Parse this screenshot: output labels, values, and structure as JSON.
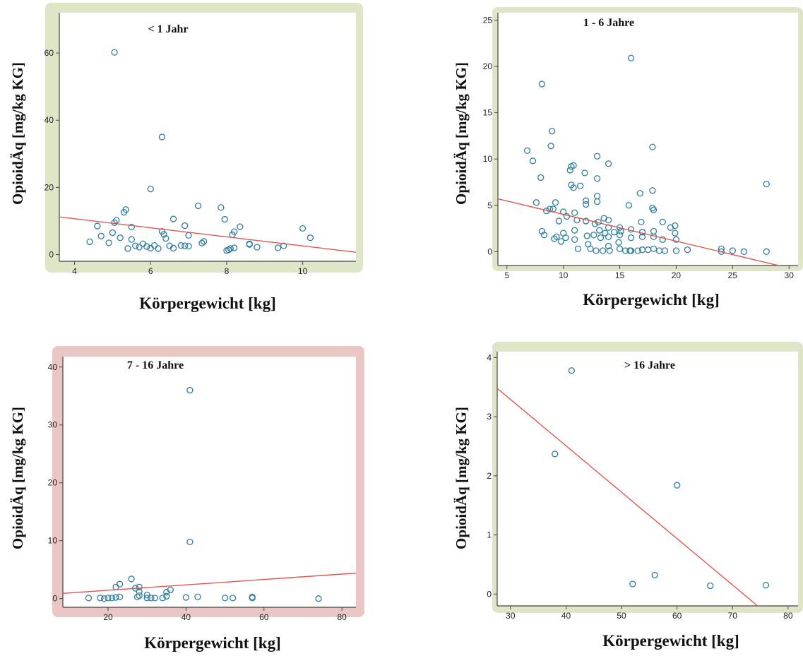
{
  "colors": {
    "point": "#2e7e9e",
    "fit_line": "#e0574f",
    "frame_ok": "#dfe6c8",
    "frame_alert": "#eac6c5",
    "axis": "#444444"
  },
  "chart_data": [
    {
      "type": "scatter",
      "title": "< 1 Jahr",
      "xlabel": "Körpergewicht [kg]",
      "ylabel": "OpioidÄq [mg/kg KG]",
      "frame": "frame_ok",
      "xlim": [
        3.6,
        11.4
      ],
      "ylim": [
        -2,
        72
      ],
      "xticks": [
        4,
        6,
        8,
        10
      ],
      "yticks": [
        0,
        20,
        40,
        60
      ],
      "fit": [
        [
          3.6,
          11.2
        ],
        [
          11.4,
          0.7
        ]
      ],
      "points": [
        [
          4.4,
          3.8
        ],
        [
          4.6,
          8.5
        ],
        [
          4.7,
          5.5
        ],
        [
          4.9,
          3.5
        ],
        [
          5.0,
          6.5
        ],
        [
          5.05,
          9.5
        ],
        [
          5.1,
          10.2
        ],
        [
          5.05,
          60.2
        ],
        [
          5.3,
          12.6
        ],
        [
          5.35,
          13.4
        ],
        [
          5.2,
          5.0
        ],
        [
          5.4,
          1.8
        ],
        [
          5.5,
          8.2
        ],
        [
          5.5,
          4.5
        ],
        [
          5.6,
          2.6
        ],
        [
          5.7,
          2.2
        ],
        [
          5.8,
          3.2
        ],
        [
          5.9,
          2.4
        ],
        [
          6.0,
          1.9
        ],
        [
          6.1,
          2.7
        ],
        [
          6.0,
          19.5
        ],
        [
          6.2,
          1.8
        ],
        [
          6.3,
          35.0
        ],
        [
          6.3,
          6.9
        ],
        [
          6.35,
          6.0
        ],
        [
          6.4,
          4.8
        ],
        [
          6.5,
          2.6
        ],
        [
          6.6,
          10.6
        ],
        [
          6.6,
          1.9
        ],
        [
          6.8,
          2.7
        ],
        [
          6.9,
          8.6
        ],
        [
          6.9,
          2.6
        ],
        [
          7.0,
          5.7
        ],
        [
          7.0,
          2.5
        ],
        [
          7.25,
          14.5
        ],
        [
          7.35,
          3.4
        ],
        [
          7.4,
          3.9
        ],
        [
          7.85,
          14.0
        ],
        [
          7.95,
          10.5
        ],
        [
          8.0,
          1.2
        ],
        [
          8.05,
          1.4
        ],
        [
          8.1,
          1.8
        ],
        [
          8.2,
          2.0
        ],
        [
          8.15,
          5.9
        ],
        [
          8.2,
          6.8
        ],
        [
          8.35,
          8.3
        ],
        [
          8.6,
          3.2
        ],
        [
          8.6,
          3.0
        ],
        [
          8.8,
          2.2
        ],
        [
          9.35,
          2.0
        ],
        [
          9.5,
          2.6
        ],
        [
          10.0,
          7.8
        ],
        [
          10.2,
          5.0
        ]
      ]
    },
    {
      "type": "scatter",
      "title": "1 - 6 Jahre",
      "xlabel": "Körpergewicht [kg]",
      "ylabel": "OpioidÄq [mg/kg KG]",
      "frame": "frame_ok",
      "xlim": [
        4.2,
        30.8
      ],
      "ylim": [
        -1.5,
        25.8
      ],
      "xticks": [
        5,
        10,
        15,
        20,
        25,
        30
      ],
      "yticks": [
        0,
        5,
        10,
        15,
        20,
        25
      ],
      "fit": [
        [
          4.2,
          5.7
        ],
        [
          30.8,
          -2.0
        ]
      ],
      "points": [
        [
          6.8,
          10.9
        ],
        [
          7.3,
          9.8
        ],
        [
          7.6,
          5.3
        ],
        [
          8.0,
          8.0
        ],
        [
          8.1,
          18.1
        ],
        [
          8.1,
          2.2
        ],
        [
          8.3,
          1.8
        ],
        [
          8.5,
          4.4
        ],
        [
          8.8,
          4.6
        ],
        [
          8.9,
          11.4
        ],
        [
          9.0,
          13.0
        ],
        [
          9.1,
          4.6
        ],
        [
          9.3,
          5.3
        ],
        [
          9.2,
          1.4
        ],
        [
          9.4,
          1.6
        ],
        [
          9.6,
          3.3
        ],
        [
          9.8,
          1.1
        ],
        [
          10.0,
          2.0
        ],
        [
          10.0,
          4.3
        ],
        [
          10.2,
          1.5
        ],
        [
          10.3,
          3.8
        ],
        [
          10.6,
          8.8
        ],
        [
          10.7,
          7.2
        ],
        [
          10.7,
          9.2
        ],
        [
          10.9,
          6.9
        ],
        [
          10.9,
          9.3
        ],
        [
          11.0,
          4.2
        ],
        [
          11.0,
          2.3
        ],
        [
          11.0,
          1.3
        ],
        [
          11.2,
          3.4
        ],
        [
          11.3,
          0.3
        ],
        [
          11.5,
          7.1
        ],
        [
          11.9,
          8.5
        ],
        [
          12.0,
          5.5
        ],
        [
          12.0,
          5.1
        ],
        [
          12.0,
          3.3
        ],
        [
          12.1,
          1.7
        ],
        [
          12.2,
          0.8
        ],
        [
          12.4,
          0.3
        ],
        [
          12.7,
          1.8
        ],
        [
          12.8,
          3.0
        ],
        [
          12.9,
          0.1
        ],
        [
          13.0,
          10.3
        ],
        [
          13.0,
          7.9
        ],
        [
          13.0,
          6.0
        ],
        [
          13.0,
          5.4
        ],
        [
          13.1,
          3.2
        ],
        [
          13.2,
          2.3
        ],
        [
          13.3,
          1.5
        ],
        [
          13.5,
          0.1
        ],
        [
          13.6,
          3.6
        ],
        [
          13.7,
          2.0
        ],
        [
          14.0,
          9.5
        ],
        [
          14.0,
          3.4
        ],
        [
          14.0,
          2.6
        ],
        [
          14.0,
          1.6
        ],
        [
          14.0,
          0.6
        ],
        [
          14.1,
          0.1
        ],
        [
          14.5,
          2.1
        ],
        [
          14.9,
          1.0
        ],
        [
          15.0,
          2.6
        ],
        [
          15.0,
          1.8
        ],
        [
          15.0,
          0.3
        ],
        [
          15.1,
          2.2
        ],
        [
          15.5,
          0.1
        ],
        [
          15.8,
          5.0
        ],
        [
          15.9,
          0.1
        ],
        [
          16.0,
          20.9
        ],
        [
          16.0,
          2.4
        ],
        [
          16.0,
          1.5
        ],
        [
          16.0,
          0.1
        ],
        [
          16.6,
          0.1
        ],
        [
          16.8,
          6.3
        ],
        [
          16.9,
          3.2
        ],
        [
          17.0,
          2.1
        ],
        [
          17.0,
          1.6
        ],
        [
          17.0,
          0.2
        ],
        [
          17.5,
          0.2
        ],
        [
          17.9,
          11.3
        ],
        [
          17.9,
          6.6
        ],
        [
          17.9,
          4.7
        ],
        [
          18.0,
          4.5
        ],
        [
          18.0,
          2.2
        ],
        [
          18.0,
          1.6
        ],
        [
          18.0,
          0.3
        ],
        [
          18.5,
          0.1
        ],
        [
          18.8,
          3.2
        ],
        [
          18.8,
          1.3
        ],
        [
          19.0,
          0.1
        ],
        [
          19.5,
          2.6
        ],
        [
          19.9,
          2.8
        ],
        [
          19.9,
          2.0
        ],
        [
          20.0,
          1.3
        ],
        [
          20.0,
          0.1
        ],
        [
          21.0,
          0.2
        ],
        [
          24.0,
          0.3
        ],
        [
          24.0,
          0.0
        ],
        [
          25.0,
          0.1
        ],
        [
          26.0,
          0.0
        ],
        [
          28.0,
          7.3
        ],
        [
          28.0,
          0.0
        ]
      ]
    },
    {
      "type": "scatter",
      "title": "7 - 16 Jahre",
      "xlabel": "Körpergewicht [kg]",
      "ylabel": "OpioidÄq [mg/kg KG]",
      "frame": "frame_alert",
      "xlim": [
        8.4,
        83.6
      ],
      "ylim": [
        -1.5,
        41.8
      ],
      "xticks": [
        20,
        40,
        60,
        80
      ],
      "yticks": [
        0,
        10,
        20,
        30,
        40
      ],
      "fit": [
        [
          8.4,
          0.9
        ],
        [
          83.6,
          4.4
        ]
      ],
      "points": [
        [
          15.0,
          0.1
        ],
        [
          18.0,
          0.1
        ],
        [
          19.0,
          0.0
        ],
        [
          20.0,
          0.1
        ],
        [
          21.0,
          0.1
        ],
        [
          22.0,
          2.0
        ],
        [
          22.0,
          0.2
        ],
        [
          23.0,
          2.5
        ],
        [
          23.0,
          0.3
        ],
        [
          26.0,
          3.4
        ],
        [
          27.0,
          1.8
        ],
        [
          27.5,
          0.3
        ],
        [
          28.0,
          2.0
        ],
        [
          28.0,
          1.2
        ],
        [
          28.0,
          0.5
        ],
        [
          30.0,
          0.6
        ],
        [
          30.0,
          0.1
        ],
        [
          31.0,
          0.1
        ],
        [
          32.0,
          0.1
        ],
        [
          34.0,
          0.1
        ],
        [
          35.0,
          0.4
        ],
        [
          35.0,
          1.1
        ],
        [
          36.0,
          1.5
        ],
        [
          40.0,
          0.2
        ],
        [
          41.0,
          36.0
        ],
        [
          41.0,
          9.8
        ],
        [
          43.0,
          0.3
        ],
        [
          50.0,
          0.1
        ],
        [
          52.0,
          0.1
        ],
        [
          57.0,
          0.3
        ],
        [
          57.0,
          0.1
        ],
        [
          74.0,
          0.0
        ]
      ]
    },
    {
      "type": "scatter",
      "title": "> 16 Jahre",
      "xlabel": "Körpergewicht [kg]",
      "ylabel": "OpioidÄq [mg/kg KG]",
      "frame": "frame_ok",
      "xlim": [
        27.6,
        81.8
      ],
      "ylim": [
        -0.2,
        4.1
      ],
      "xticks": [
        30,
        40,
        50,
        60,
        70,
        80
      ],
      "yticks": [
        0,
        1,
        2,
        3,
        4
      ],
      "fit": [
        [
          27.6,
          3.48
        ],
        [
          74.5,
          -0.2
        ]
      ],
      "points": [
        [
          38.0,
          2.37
        ],
        [
          41.0,
          3.78
        ],
        [
          52.0,
          0.17
        ],
        [
          56.0,
          0.32
        ],
        [
          60.0,
          1.84
        ],
        [
          66.0,
          0.14
        ],
        [
          76.0,
          0.15
        ]
      ]
    }
  ]
}
